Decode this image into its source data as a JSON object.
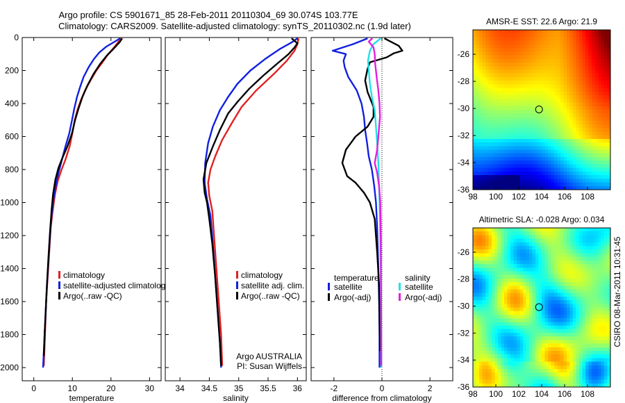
{
  "header": {
    "title_line1": "Argo profile: CS 5901671_85 28-Feb-2011 20110304_69 30.074S 103.77E",
    "title_line2": "Climatology: CARS2009. Satellite-adjusted climatology: synTS_20110302.nc (1.9d later)"
  },
  "side_label": "CSIRO 08-Mar-2011 10:31:45",
  "colors": {
    "climatology": "#e02020",
    "satellite": "#1020e0",
    "argo": "#000000",
    "sat_salinity": "#20e0e8",
    "argo_salinity": "#e020e0"
  },
  "chart_data": [
    {
      "type": "line",
      "xlabel": "temperature",
      "xticks": [
        "0",
        "10",
        "20",
        "30"
      ],
      "xlim": [
        -3,
        33
      ],
      "ylim": [
        0,
        2080
      ],
      "yticks": [
        "0",
        "200",
        "400",
        "600",
        "800",
        "1000",
        "1200",
        "1400",
        "1600",
        "1800",
        "2000"
      ],
      "y_reversed": true,
      "legend": [
        "climatology",
        "satellite-adjusted climatolog",
        "Argo(..raw -QC)"
      ],
      "series": [
        {
          "name": "climatology",
          "color": "#e02020",
          "points": [
            [
              22.6,
              5
            ],
            [
              21.8,
              30
            ],
            [
              20.8,
              60
            ],
            [
              19.3,
              100
            ],
            [
              17.8,
              150
            ],
            [
              16.2,
              200
            ],
            [
              14.7,
              260
            ],
            [
              13.3,
              320
            ],
            [
              12.2,
              380
            ],
            [
              11.3,
              440
            ],
            [
              10.6,
              500
            ],
            [
              10,
              580
            ],
            [
              9.3,
              660
            ],
            [
              8.2,
              740
            ],
            [
              7.2,
              800
            ],
            [
              6.2,
              870
            ],
            [
              5.5,
              950
            ],
            [
              4.9,
              1050
            ],
            [
              4.4,
              1150
            ],
            [
              4,
              1300
            ],
            [
              3.6,
              1450
            ],
            [
              3.2,
              1600
            ],
            [
              2.9,
              1800
            ],
            [
              2.6,
              1990
            ]
          ]
        },
        {
          "name": "satellite-adjusted climatolog",
          "color": "#1020e0",
          "points": [
            [
              22.4,
              5
            ],
            [
              21,
              25
            ],
            [
              18.8,
              55
            ],
            [
              17,
              90
            ],
            [
              15.6,
              130
            ],
            [
              14.2,
              180
            ],
            [
              12.9,
              240
            ],
            [
              12,
              300
            ],
            [
              11.2,
              360
            ],
            [
              10.5,
              430
            ],
            [
              9.9,
              500
            ],
            [
              9.2,
              580
            ],
            [
              8.2,
              660
            ],
            [
              7.3,
              740
            ],
            [
              6.4,
              820
            ],
            [
              5.7,
              900
            ],
            [
              5.1,
              980
            ],
            [
              4.6,
              1080
            ],
            [
              4.2,
              1200
            ],
            [
              3.8,
              1350
            ],
            [
              3.4,
              1500
            ],
            [
              3.1,
              1650
            ],
            [
              2.7,
              1850
            ],
            [
              2.4,
              2000
            ]
          ]
        },
        {
          "name": "Argo(..raw -QC)",
          "color": "#000000",
          "points": [
            [
              22.9,
              5
            ],
            [
              22.2,
              30
            ],
            [
              20.6,
              70
            ],
            [
              18.9,
              110
            ],
            [
              17.2,
              160
            ],
            [
              15.5,
              220
            ],
            [
              13.9,
              290
            ],
            [
              12.6,
              360
            ],
            [
              11.6,
              430
            ],
            [
              10.7,
              500
            ],
            [
              9.9,
              580
            ],
            [
              8.7,
              660
            ],
            [
              7.4,
              730
            ],
            [
              6.4,
              790
            ],
            [
              5.6,
              860
            ],
            [
              5,
              950
            ],
            [
              4.6,
              1050
            ],
            [
              4.2,
              1180
            ],
            [
              3.8,
              1330
            ],
            [
              3.4,
              1500
            ],
            [
              3.1,
              1650
            ],
            [
              2.8,
              1800
            ],
            [
              2.6,
              1930
            ]
          ]
        }
      ]
    },
    {
      "type": "line",
      "xlabel": "salinity",
      "xticks": [
        "34",
        "34.5",
        "35",
        "35.5",
        "36"
      ],
      "xlim": [
        33.75,
        36.15
      ],
      "ylim": [
        0,
        2080
      ],
      "y_reversed": true,
      "legend": [
        "climatology",
        "satellite adj. clim.",
        "Argo(..raw -QC)"
      ],
      "annotation": [
        "Argo AUSTRALIA",
        "PI: Susan Wijffels"
      ],
      "series": [
        {
          "name": "climatology",
          "color": "#e02020",
          "points": [
            [
              36.02,
              5
            ],
            [
              36,
              40
            ],
            [
              35.95,
              80
            ],
            [
              35.82,
              140
            ],
            [
              35.6,
              220
            ],
            [
              35.3,
              320
            ],
            [
              35.05,
              420
            ],
            [
              34.88,
              520
            ],
            [
              34.72,
              620
            ],
            [
              34.6,
              720
            ],
            [
              34.52,
              800
            ],
            [
              34.48,
              880
            ],
            [
              34.5,
              960
            ],
            [
              34.55,
              1050
            ],
            [
              34.58,
              1200
            ],
            [
              34.62,
              1400
            ],
            [
              34.66,
              1600
            ],
            [
              34.7,
              1800
            ],
            [
              34.72,
              1990
            ]
          ]
        },
        {
          "name": "satellite adj. clim.",
          "color": "#1020e0",
          "points": [
            [
              36,
              5
            ],
            [
              35.9,
              30
            ],
            [
              35.7,
              70
            ],
            [
              35.45,
              130
            ],
            [
              35.2,
              200
            ],
            [
              34.98,
              280
            ],
            [
              34.82,
              360
            ],
            [
              34.68,
              440
            ],
            [
              34.56,
              540
            ],
            [
              34.48,
              640
            ],
            [
              34.43,
              760
            ],
            [
              34.42,
              880
            ],
            [
              34.46,
              980
            ],
            [
              34.52,
              1080
            ],
            [
              34.56,
              1250
            ],
            [
              34.6,
              1450
            ],
            [
              34.64,
              1650
            ],
            [
              34.68,
              1850
            ],
            [
              34.7,
              2000
            ]
          ]
        },
        {
          "name": "Argo(..raw -QC)",
          "color": "#000000",
          "points": [
            [
              35.9,
              5
            ],
            [
              35.95,
              20
            ],
            [
              36,
              35
            ],
            [
              35.95,
              60
            ],
            [
              35.85,
              100
            ],
            [
              35.65,
              160
            ],
            [
              35.42,
              230
            ],
            [
              35.18,
              310
            ],
            [
              34.98,
              390
            ],
            [
              34.82,
              460
            ],
            [
              34.68,
              560
            ],
            [
              34.56,
              660
            ],
            [
              34.45,
              760
            ],
            [
              34.4,
              860
            ],
            [
              34.42,
              940
            ],
            [
              34.46,
              1000
            ],
            [
              34.5,
              1100
            ],
            [
              34.55,
              1250
            ],
            [
              34.6,
              1450
            ],
            [
              34.64,
              1650
            ],
            [
              34.68,
              1850
            ],
            [
              34.7,
              1990
            ]
          ]
        }
      ]
    },
    {
      "type": "line",
      "xlabel": "difference from climatology",
      "xticks": [
        "-2",
        "0",
        "2"
      ],
      "xlim": [
        -2.95,
        2.95
      ],
      "ylim": [
        0,
        2080
      ],
      "y_reversed": true,
      "legend_headers": [
        "temperature",
        "salinity"
      ],
      "legend_temperature": [
        "satellite",
        "Argo(-adj)"
      ],
      "legend_salinity": [
        "satellite",
        "Argo(-adj)"
      ],
      "series": [
        {
          "name": "temperature satellite",
          "color": "#1020e0",
          "points": [
            [
              -0.6,
              5
            ],
            [
              -1.2,
              40
            ],
            [
              -2.05,
              80
            ],
            [
              -1.5,
              100
            ],
            [
              -1.6,
              140
            ],
            [
              -1.55,
              180
            ],
            [
              -1.4,
              240
            ],
            [
              -1.05,
              320
            ],
            [
              -0.85,
              400
            ],
            [
              -0.75,
              480
            ],
            [
              -0.7,
              560
            ],
            [
              -0.62,
              640
            ],
            [
              -0.55,
              720
            ],
            [
              -0.42,
              800
            ],
            [
              -0.32,
              900
            ],
            [
              -0.25,
              1000
            ],
            [
              -0.2,
              1150
            ],
            [
              -0.15,
              1400
            ],
            [
              -0.12,
              1600
            ],
            [
              -0.1,
              1800
            ],
            [
              -0.1,
              2000
            ]
          ]
        },
        {
          "name": "temperature Argo(-adj)",
          "color": "#000000",
          "points": [
            [
              0.1,
              5
            ],
            [
              0.7,
              50
            ],
            [
              0.85,
              80
            ],
            [
              0.5,
              95
            ],
            [
              0.2,
              120
            ],
            [
              -0.5,
              150
            ],
            [
              -0.6,
              190
            ],
            [
              -0.7,
              260
            ],
            [
              -0.6,
              330
            ],
            [
              -0.35,
              420
            ],
            [
              -0.35,
              480
            ],
            [
              -0.6,
              540
            ],
            [
              -1.1,
              600
            ],
            [
              -1.5,
              680
            ],
            [
              -1.65,
              760
            ],
            [
              -1.45,
              840
            ],
            [
              -1.1,
              880
            ],
            [
              -0.75,
              940
            ],
            [
              -0.5,
              1000
            ],
            [
              -0.3,
              1100
            ],
            [
              -0.2,
              1300
            ],
            [
              -0.12,
              1500
            ],
            [
              -0.1,
              1700
            ],
            [
              -0.08,
              1900
            ]
          ]
        },
        {
          "name": "salinity satellite",
          "color": "#20e0e8",
          "points": [
            [
              -0.05,
              5
            ],
            [
              -0.35,
              40
            ],
            [
              -0.5,
              80
            ],
            [
              -0.58,
              140
            ],
            [
              -0.55,
              200
            ],
            [
              -0.5,
              280
            ],
            [
              -0.42,
              360
            ],
            [
              -0.3,
              440
            ],
            [
              -0.25,
              540
            ],
            [
              -0.2,
              640
            ],
            [
              -0.15,
              760
            ],
            [
              -0.12,
              900
            ],
            [
              -0.08,
              1100
            ],
            [
              -0.05,
              1400
            ],
            [
              -0.04,
              1700
            ],
            [
              -0.03,
              2000
            ]
          ]
        },
        {
          "name": "salinity Argo(-adj)",
          "color": "#e020e0",
          "points": [
            [
              -0.4,
              5
            ],
            [
              -0.55,
              25
            ],
            [
              -0.35,
              60
            ],
            [
              -0.3,
              100
            ],
            [
              -0.28,
              160
            ],
            [
              -0.22,
              240
            ],
            [
              -0.15,
              320
            ],
            [
              -0.1,
              400
            ],
            [
              -0.08,
              480
            ],
            [
              -0.15,
              600
            ],
            [
              -0.2,
              680
            ],
            [
              -0.3,
              760
            ],
            [
              -0.2,
              820
            ],
            [
              -0.12,
              900
            ],
            [
              -0.07,
              1000
            ],
            [
              -0.05,
              1200
            ],
            [
              -0.04,
              1500
            ],
            [
              -0.03,
              1800
            ],
            [
              -0.03,
              1990
            ]
          ]
        }
      ]
    },
    {
      "type": "heatmap",
      "title": "AMSR-E SST: 22.6 Argo: 21.9",
      "xticks": [
        "98",
        "100",
        "102",
        "104",
        "106",
        "108"
      ],
      "yticks": [
        "-26",
        "-28",
        "-30",
        "-32",
        "-34",
        "-36"
      ],
      "xlim": [
        98,
        110
      ],
      "ylim": [
        -36,
        -24.2
      ],
      "marker": {
        "lon": 103.77,
        "lat": -30.074
      }
    },
    {
      "type": "heatmap",
      "title": "Altimetric SLA: -0.028 Argo: 0.034",
      "xticks": [
        "98",
        "100",
        "102",
        "104",
        "106",
        "108"
      ],
      "yticks": [
        "-26",
        "-28",
        "-30",
        "-32",
        "-34",
        "-36"
      ],
      "xlim": [
        98,
        110
      ],
      "ylim": [
        -36,
        -24.2
      ],
      "marker": {
        "lon": 103.77,
        "lat": -30.074
      }
    }
  ]
}
